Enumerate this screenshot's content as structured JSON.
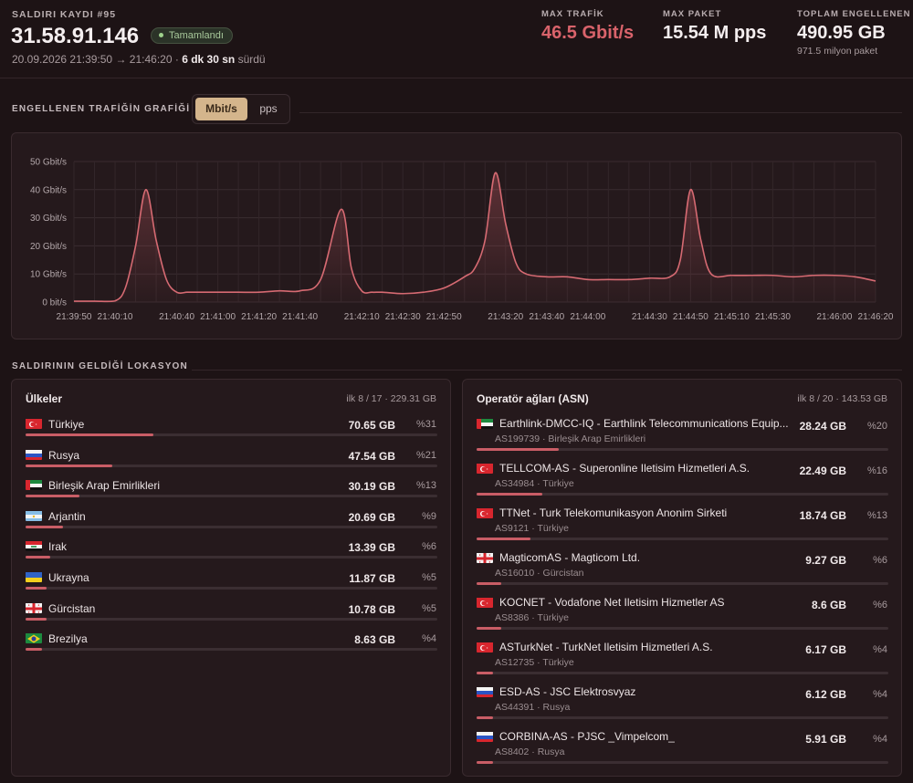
{
  "header": {
    "attack_id": "SALDIRI KAYDI #95",
    "ip": "31.58.91.146",
    "status": "Tamamlandı",
    "time_start": "20.09.2026 21:39:50",
    "arrow": "→",
    "time_end": "21:46:20",
    "sep": "·",
    "duration": "6 dk 30 sn",
    "duration_suffix": "sürdü"
  },
  "stats": {
    "max_traffic": {
      "label": "MAX TRAFİK",
      "value": "46.5 Gbit/s"
    },
    "max_packet": {
      "label": "MAX PAKET",
      "value": "15.54 M pps"
    },
    "total_blocked": {
      "label": "TOPLAM ENGELLENEN",
      "value": "490.95 GB",
      "sub": "971.5 milyon paket"
    }
  },
  "graph_section": {
    "title": "ENGELLENEN TRAFİĞİN GRAFİĞİ",
    "toggle_active": "Mbit/s",
    "toggle_other": "pps"
  },
  "chart_data": {
    "type": "area",
    "unit": "Gbit/s",
    "ylim": [
      0,
      50
    ],
    "yticks": [
      "0 bit/s",
      "10 Gbit/s",
      "20 Gbit/s",
      "30 Gbit/s",
      "40 Gbit/s",
      "50 Gbit/s"
    ],
    "xticks": [
      "21:39:50",
      "21:40:10",
      "21:40:40",
      "21:41:00",
      "21:41:20",
      "21:41:40",
      "21:42:10",
      "21:42:30",
      "21:42:50",
      "21:43:20",
      "21:43:40",
      "21:44:00",
      "21:44:30",
      "21:44:50",
      "21:45:10",
      "21:45:30",
      "21:46:00",
      "21:46:20"
    ],
    "x": [
      "21:39:50",
      "21:40:00",
      "21:40:10",
      "21:40:15",
      "21:40:20",
      "21:40:25",
      "21:40:30",
      "21:40:35",
      "21:40:40",
      "21:40:45",
      "21:40:50",
      "21:41:00",
      "21:41:10",
      "21:41:20",
      "21:41:30",
      "21:41:40",
      "21:41:50",
      "21:42:00",
      "21:42:05",
      "21:42:10",
      "21:42:15",
      "21:42:20",
      "21:42:30",
      "21:42:40",
      "21:42:50",
      "21:43:00",
      "21:43:05",
      "21:43:10",
      "21:43:15",
      "21:43:20",
      "21:43:25",
      "21:43:30",
      "21:43:40",
      "21:43:50",
      "21:44:00",
      "21:44:10",
      "21:44:20",
      "21:44:30",
      "21:44:40",
      "21:44:45",
      "21:44:50",
      "21:44:55",
      "21:45:00",
      "21:45:10",
      "21:45:20",
      "21:45:30",
      "21:45:40",
      "21:45:50",
      "21:46:00",
      "21:46:10",
      "21:46:20"
    ],
    "values": [
      0.3,
      0.3,
      0.4,
      5,
      20,
      40,
      22,
      8,
      3.5,
      3.5,
      3.5,
      3.5,
      3.5,
      3.5,
      4,
      4,
      8,
      33,
      12,
      4,
      3.5,
      3.5,
      3,
      3.5,
      5,
      9,
      12,
      22,
      46,
      28,
      14,
      10,
      9,
      9,
      8,
      8,
      8,
      8.5,
      9,
      15,
      40,
      22,
      10,
      9.5,
      9.5,
      9.5,
      9,
      9.5,
      9.5,
      9,
      7.5
    ]
  },
  "location_section": {
    "title": "SALDIRININ GELDİĞİ LOKASYON"
  },
  "countries": {
    "title": "Ülkeler",
    "meta": "ilk 8 / 17 · 229.31 GB",
    "items": [
      {
        "name": "Türkiye",
        "value": "70.65 GB",
        "pct": "%31",
        "share": 0.31,
        "flag": "tr"
      },
      {
        "name": "Rusya",
        "value": "47.54 GB",
        "pct": "%21",
        "share": 0.21,
        "flag": "ru"
      },
      {
        "name": "Birleşik Arap Emirlikleri",
        "value": "30.19 GB",
        "pct": "%13",
        "share": 0.13,
        "flag": "ae"
      },
      {
        "name": "Arjantin",
        "value": "20.69 GB",
        "pct": "%9",
        "share": 0.09,
        "flag": "ar"
      },
      {
        "name": "Irak",
        "value": "13.39 GB",
        "pct": "%6",
        "share": 0.06,
        "flag": "iq"
      },
      {
        "name": "Ukrayna",
        "value": "11.87 GB",
        "pct": "%5",
        "share": 0.05,
        "flag": "ua"
      },
      {
        "name": "Gürcistan",
        "value": "10.78 GB",
        "pct": "%5",
        "share": 0.05,
        "flag": "ge"
      },
      {
        "name": "Brezilya",
        "value": "8.63 GB",
        "pct": "%4",
        "share": 0.04,
        "flag": "br"
      }
    ]
  },
  "asn": {
    "title": "Operatör ağları (ASN)",
    "meta": "ilk 8 / 20 · 143.53 GB",
    "items": [
      {
        "name": "Earthlink-DMCC-IQ - Earthlink Telecommunications Equip...",
        "sub": "AS199739 · Birleşik Arap Emirlikleri",
        "value": "28.24 GB",
        "pct": "%20",
        "share": 0.2,
        "flag": "ae"
      },
      {
        "name": "TELLCOM-AS - Superonline Iletisim Hizmetleri A.S.",
        "sub": "AS34984 · Türkiye",
        "value": "22.49 GB",
        "pct": "%16",
        "share": 0.16,
        "flag": "tr"
      },
      {
        "name": "TTNet - Turk Telekomunikasyon Anonim Sirketi",
        "sub": "AS9121 · Türkiye",
        "value": "18.74 GB",
        "pct": "%13",
        "share": 0.13,
        "flag": "tr"
      },
      {
        "name": "MagticomAS - Magticom Ltd.",
        "sub": "AS16010 · Gürcistan",
        "value": "9.27 GB",
        "pct": "%6",
        "share": 0.06,
        "flag": "ge"
      },
      {
        "name": "KOCNET - Vodafone Net Iletisim Hizmetler AS",
        "sub": "AS8386 · Türkiye",
        "value": "8.6 GB",
        "pct": "%6",
        "share": 0.06,
        "flag": "tr"
      },
      {
        "name": "ASTurkNet - TurkNet Iletisim Hizmetleri A.S.",
        "sub": "AS12735 · Türkiye",
        "value": "6.17 GB",
        "pct": "%4",
        "share": 0.04,
        "flag": "tr"
      },
      {
        "name": "ESD-AS - JSC Elektrosvyaz",
        "sub": "AS44391 · Rusya",
        "value": "6.12 GB",
        "pct": "%4",
        "share": 0.04,
        "flag": "ru"
      },
      {
        "name": "CORBINA-AS - PJSC _Vimpelcom_",
        "sub": "AS8402 · Rusya",
        "value": "5.91 GB",
        "pct": "%4",
        "share": 0.04,
        "flag": "ru"
      }
    ]
  },
  "colors": {
    "accent": "#d9636b",
    "line": "#d66a72",
    "fill": "#c95d66",
    "toggle": "#d4b58c"
  }
}
